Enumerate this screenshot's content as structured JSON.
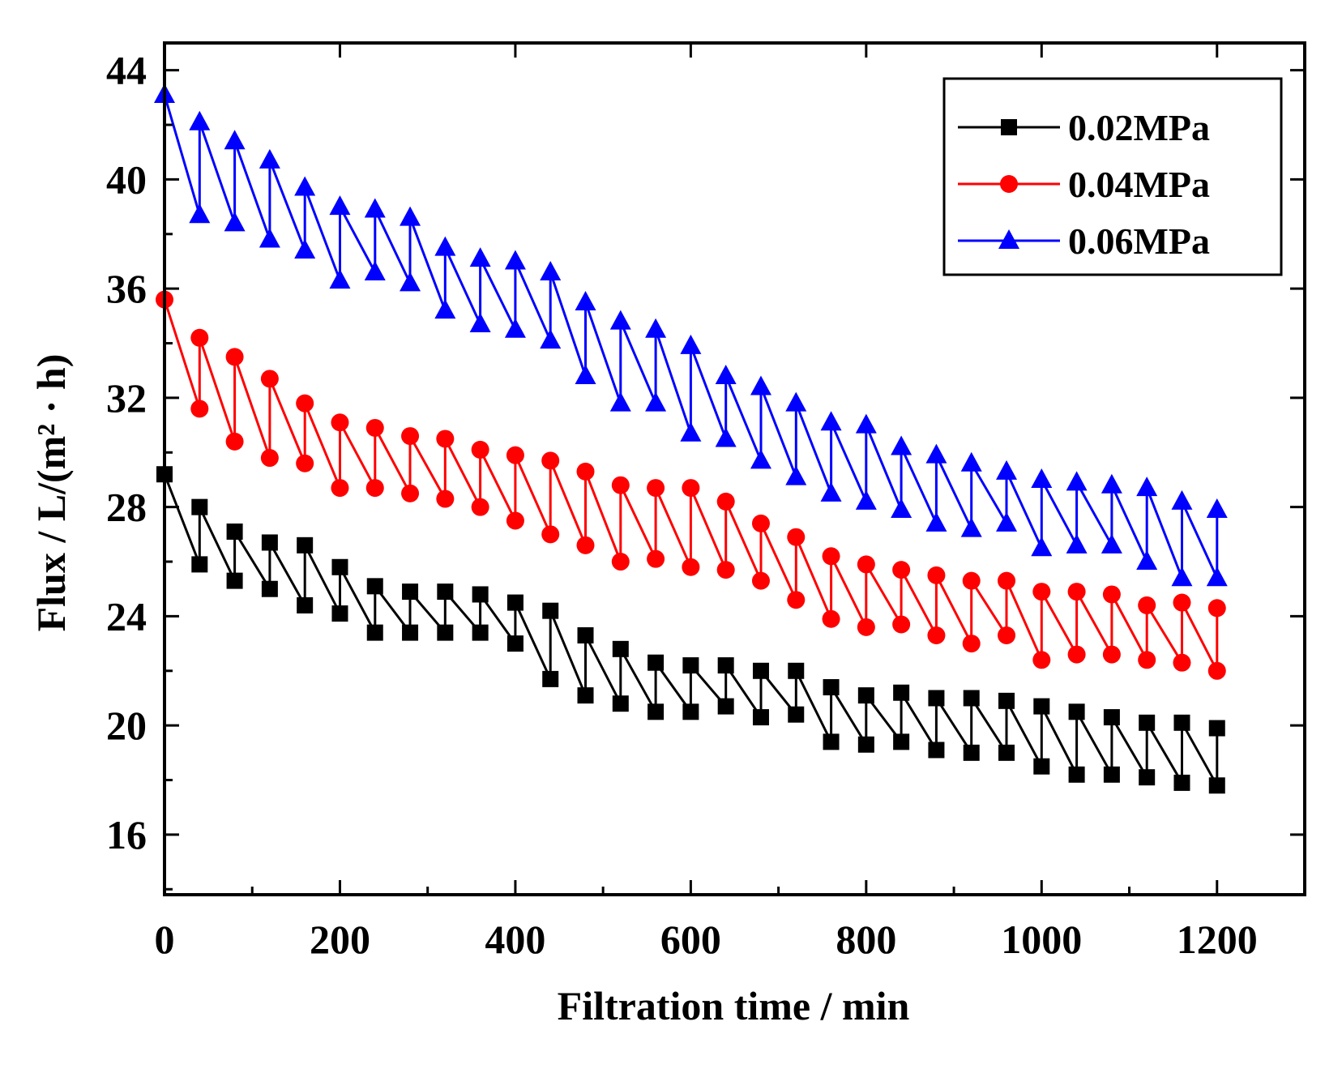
{
  "chart_data": {
    "type": "line",
    "title": "",
    "xlabel": "Filtration time  /  min",
    "ylabel": "Flux / L/(m² · h)",
    "xlim": [
      0,
      1300
    ],
    "ylim": [
      13.8,
      45
    ],
    "xticks": [
      0,
      200,
      400,
      600,
      800,
      1000,
      1200
    ],
    "yticks": [
      16,
      20,
      24,
      28,
      32,
      36,
      40,
      44
    ],
    "legend_position": "top-right",
    "grid": false,
    "series": [
      {
        "name": "0.02MPa",
        "color": "#000000",
        "marker": "square",
        "points": [
          [
            0,
            29.2
          ],
          [
            40,
            25.9
          ],
          [
            40,
            28.0
          ],
          [
            80,
            25.3
          ],
          [
            80,
            27.1
          ],
          [
            120,
            25.0
          ],
          [
            120,
            26.7
          ],
          [
            160,
            24.4
          ],
          [
            160,
            26.6
          ],
          [
            200,
            24.1
          ],
          [
            200,
            25.8
          ],
          [
            240,
            23.4
          ],
          [
            240,
            25.1
          ],
          [
            280,
            23.4
          ],
          [
            280,
            24.9
          ],
          [
            320,
            23.4
          ],
          [
            320,
            24.9
          ],
          [
            360,
            23.4
          ],
          [
            360,
            24.8
          ],
          [
            400,
            23.0
          ],
          [
            400,
            24.5
          ],
          [
            440,
            21.7
          ],
          [
            440,
            24.2
          ],
          [
            480,
            21.1
          ],
          [
            480,
            23.3
          ],
          [
            520,
            20.8
          ],
          [
            520,
            22.8
          ],
          [
            560,
            20.5
          ],
          [
            560,
            22.3
          ],
          [
            600,
            20.5
          ],
          [
            600,
            22.2
          ],
          [
            640,
            20.7
          ],
          [
            640,
            22.2
          ],
          [
            680,
            20.3
          ],
          [
            680,
            22.0
          ],
          [
            720,
            20.4
          ],
          [
            720,
            22.0
          ],
          [
            760,
            19.4
          ],
          [
            760,
            21.4
          ],
          [
            800,
            19.3
          ],
          [
            800,
            21.1
          ],
          [
            840,
            19.4
          ],
          [
            840,
            21.2
          ],
          [
            880,
            19.1
          ],
          [
            880,
            21.0
          ],
          [
            920,
            19.0
          ],
          [
            920,
            21.0
          ],
          [
            960,
            19.0
          ],
          [
            960,
            20.9
          ],
          [
            1000,
            18.5
          ],
          [
            1000,
            20.7
          ],
          [
            1040,
            18.2
          ],
          [
            1040,
            20.5
          ],
          [
            1080,
            18.2
          ],
          [
            1080,
            20.3
          ],
          [
            1120,
            18.1
          ],
          [
            1120,
            20.1
          ],
          [
            1160,
            17.9
          ],
          [
            1160,
            20.1
          ],
          [
            1200,
            17.8
          ],
          [
            1200,
            19.9
          ]
        ]
      },
      {
        "name": "0.04MPa",
        "color": "#ff0000",
        "marker": "circle",
        "points": [
          [
            0,
            35.6
          ],
          [
            40,
            31.6
          ],
          [
            40,
            34.2
          ],
          [
            80,
            30.4
          ],
          [
            80,
            33.5
          ],
          [
            120,
            29.8
          ],
          [
            120,
            32.7
          ],
          [
            160,
            29.6
          ],
          [
            160,
            31.8
          ],
          [
            200,
            28.7
          ],
          [
            200,
            31.1
          ],
          [
            240,
            28.7
          ],
          [
            240,
            30.9
          ],
          [
            280,
            28.5
          ],
          [
            280,
            30.6
          ],
          [
            320,
            28.3
          ],
          [
            320,
            30.5
          ],
          [
            360,
            28.0
          ],
          [
            360,
            30.1
          ],
          [
            400,
            27.5
          ],
          [
            400,
            29.9
          ],
          [
            440,
            27.0
          ],
          [
            440,
            29.7
          ],
          [
            480,
            26.6
          ],
          [
            480,
            29.3
          ],
          [
            520,
            26.0
          ],
          [
            520,
            28.8
          ],
          [
            560,
            26.1
          ],
          [
            560,
            28.7
          ],
          [
            600,
            25.8
          ],
          [
            600,
            28.7
          ],
          [
            640,
            25.7
          ],
          [
            640,
            28.2
          ],
          [
            680,
            25.3
          ],
          [
            680,
            27.4
          ],
          [
            720,
            24.6
          ],
          [
            720,
            26.9
          ],
          [
            760,
            23.9
          ],
          [
            760,
            26.2
          ],
          [
            800,
            23.6
          ],
          [
            800,
            25.9
          ],
          [
            840,
            23.7
          ],
          [
            840,
            25.7
          ],
          [
            880,
            23.3
          ],
          [
            880,
            25.5
          ],
          [
            920,
            23.0
          ],
          [
            920,
            25.3
          ],
          [
            960,
            23.3
          ],
          [
            960,
            25.3
          ],
          [
            1000,
            22.4
          ],
          [
            1000,
            24.9
          ],
          [
            1040,
            22.6
          ],
          [
            1040,
            24.9
          ],
          [
            1080,
            22.6
          ],
          [
            1080,
            24.8
          ],
          [
            1120,
            22.4
          ],
          [
            1120,
            24.4
          ],
          [
            1160,
            22.3
          ],
          [
            1160,
            24.5
          ],
          [
            1200,
            22.0
          ],
          [
            1200,
            24.3
          ]
        ]
      },
      {
        "name": "0.06MPa",
        "color": "#0000ff",
        "marker": "triangle",
        "points": [
          [
            0,
            43.1
          ],
          [
            40,
            38.7
          ],
          [
            40,
            42.1
          ],
          [
            80,
            38.4
          ],
          [
            80,
            41.4
          ],
          [
            120,
            37.8
          ],
          [
            120,
            40.7
          ],
          [
            160,
            37.4
          ],
          [
            160,
            39.7
          ],
          [
            200,
            36.3
          ],
          [
            200,
            39.0
          ],
          [
            240,
            36.6
          ],
          [
            240,
            38.9
          ],
          [
            280,
            36.2
          ],
          [
            280,
            38.6
          ],
          [
            320,
            35.2
          ],
          [
            320,
            37.5
          ],
          [
            360,
            34.7
          ],
          [
            360,
            37.1
          ],
          [
            400,
            34.5
          ],
          [
            400,
            37.0
          ],
          [
            440,
            34.1
          ],
          [
            440,
            36.6
          ],
          [
            480,
            32.8
          ],
          [
            480,
            35.5
          ],
          [
            520,
            31.8
          ],
          [
            520,
            34.8
          ],
          [
            560,
            31.8
          ],
          [
            560,
            34.5
          ],
          [
            600,
            30.7
          ],
          [
            600,
            33.9
          ],
          [
            640,
            30.5
          ],
          [
            640,
            32.8
          ],
          [
            680,
            29.7
          ],
          [
            680,
            32.4
          ],
          [
            720,
            29.1
          ],
          [
            720,
            31.8
          ],
          [
            760,
            28.5
          ],
          [
            760,
            31.1
          ],
          [
            800,
            28.2
          ],
          [
            800,
            31.0
          ],
          [
            840,
            27.9
          ],
          [
            840,
            30.2
          ],
          [
            880,
            27.4
          ],
          [
            880,
            29.9
          ],
          [
            920,
            27.2
          ],
          [
            920,
            29.6
          ],
          [
            960,
            27.4
          ],
          [
            960,
            29.3
          ],
          [
            1000,
            26.5
          ],
          [
            1000,
            29.0
          ],
          [
            1040,
            26.6
          ],
          [
            1040,
            28.9
          ],
          [
            1080,
            26.6
          ],
          [
            1080,
            28.8
          ],
          [
            1120,
            26.0
          ],
          [
            1120,
            28.7
          ],
          [
            1160,
            25.4
          ],
          [
            1160,
            28.2
          ],
          [
            1200,
            25.4
          ],
          [
            1200,
            27.9
          ]
        ]
      }
    ]
  }
}
